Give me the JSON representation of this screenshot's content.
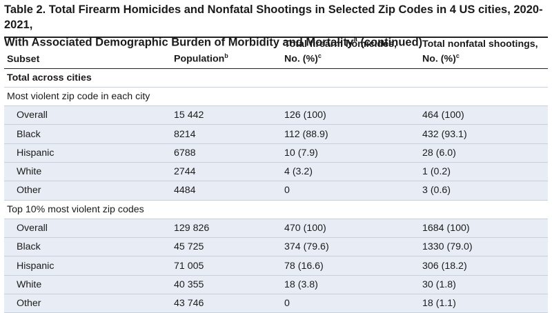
{
  "title": {
    "line1": "Table 2. Total Firearm Homicides and Nonfatal Shootings in Selected Zip Codes in 4 US cities, 2020-2021,",
    "line2": "With Associated Demographic Burden of Morbidity and Mortality",
    "sup": "a",
    "suffix": " (continued)"
  },
  "headers": {
    "subset": "Subset",
    "population": "Population",
    "population_sup": "b",
    "homicides_l1": "Total firearm homicides,",
    "homicides_l2": "No. (%)",
    "homicides_sup": "c",
    "shootings_l1": "Total nonfatal shootings,",
    "shootings_l2": "No. (%)",
    "shootings_sup": "c"
  },
  "sections": {
    "total_across_cities": "Total across cities",
    "most_violent": "Most violent zip code in each city",
    "top10": "Top 10% most violent zip codes"
  },
  "most_violent_rows": [
    {
      "subset": "Overall",
      "population": "15 442",
      "homicides": "126 (100)",
      "shootings": "464 (100)"
    },
    {
      "subset": "Black",
      "population": "8214",
      "homicides": "112 (88.9)",
      "shootings": "432 (93.1)"
    },
    {
      "subset": "Hispanic",
      "population": "6788",
      "homicides": "10 (7.9)",
      "shootings": "28 (6.0)"
    },
    {
      "subset": "White",
      "population": "2744",
      "homicides": "4 (3.2)",
      "shootings": "1 (0.2)"
    },
    {
      "subset": "Other",
      "population": "4484",
      "homicides": "0",
      "shootings": "3 (0.6)"
    }
  ],
  "top10_rows": [
    {
      "subset": "Overall",
      "population": "129 826",
      "homicides": "470 (100)",
      "shootings": "1684 (100)"
    },
    {
      "subset": "Black",
      "population": "45 725",
      "homicides": "374 (79.6)",
      "shootings": "1330 (79.0)"
    },
    {
      "subset": "Hispanic",
      "population": "71 005",
      "homicides": "78 (16.6)",
      "shootings": "306 (18.2)"
    },
    {
      "subset": "White",
      "population": "40 355",
      "homicides": "18 (3.8)",
      "shootings": "30 (1.8)"
    },
    {
      "subset": "Other",
      "population": "43 746",
      "homicides": "0",
      "shootings": "18 (1.1)"
    }
  ],
  "colors": {
    "shade": "#e8edf5",
    "rule": "#222222"
  }
}
